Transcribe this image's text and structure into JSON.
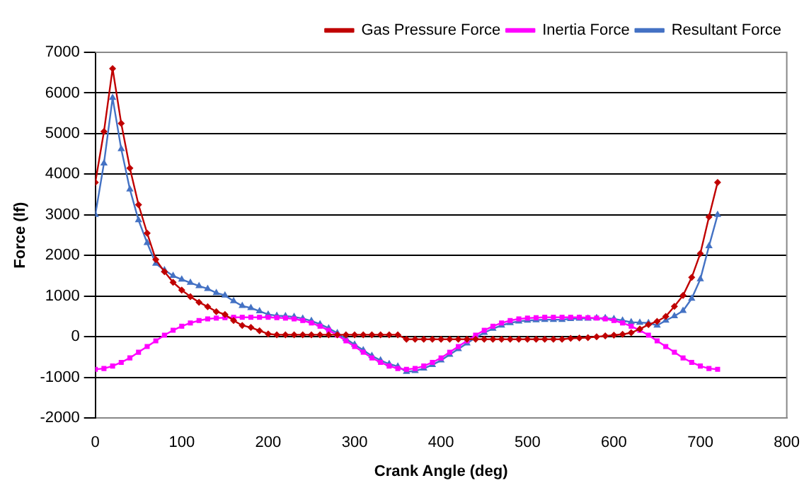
{
  "chart_data": {
    "type": "line",
    "xlabel": "Crank Angle (deg)",
    "ylabel": "Force (lf)",
    "x": [
      0,
      10,
      20,
      30,
      40,
      50,
      60,
      70,
      80,
      90,
      100,
      110,
      120,
      130,
      140,
      150,
      160,
      170,
      180,
      190,
      200,
      210,
      220,
      230,
      240,
      250,
      260,
      270,
      280,
      290,
      300,
      310,
      320,
      330,
      340,
      350,
      360,
      370,
      380,
      390,
      400,
      410,
      420,
      430,
      440,
      450,
      460,
      470,
      480,
      490,
      500,
      510,
      520,
      530,
      540,
      550,
      560,
      570,
      580,
      590,
      600,
      610,
      620,
      630,
      640,
      650,
      660,
      670,
      680,
      690,
      700,
      710,
      720
    ],
    "series": [
      {
        "name": "Gas Pressure Force",
        "color": "#c00000",
        "marker": "diamond",
        "values": [
          3800,
          5050,
          6600,
          5250,
          4150,
          3250,
          2550,
          1900,
          1600,
          1340,
          1150,
          990,
          850,
          740,
          620,
          550,
          400,
          280,
          230,
          150,
          70,
          50,
          50,
          50,
          50,
          50,
          50,
          50,
          50,
          50,
          50,
          50,
          50,
          50,
          50,
          50,
          -60,
          -60,
          -60,
          -60,
          -60,
          -60,
          -60,
          -60,
          -60,
          -60,
          -60,
          -60,
          -60,
          -60,
          -60,
          -60,
          -60,
          -60,
          -60,
          -40,
          -30,
          -20,
          0,
          20,
          40,
          60,
          100,
          190,
          300,
          380,
          500,
          750,
          1020,
          1460,
          2050,
          2950,
          3800
        ]
      },
      {
        "name": "Inertia Force",
        "color": "#ff00ff",
        "marker": "square",
        "values": [
          -800,
          -780,
          -720,
          -630,
          -520,
          -380,
          -240,
          -100,
          40,
          160,
          260,
          340,
          400,
          440,
          460,
          470,
          480,
          480,
          480,
          480,
          480,
          470,
          460,
          440,
          400,
          340,
          260,
          160,
          40,
          -100,
          -240,
          -380,
          -520,
          -630,
          -720,
          -780,
          -800,
          -780,
          -720,
          -630,
          -520,
          -380,
          -240,
          -100,
          40,
          160,
          260,
          340,
          400,
          440,
          460,
          470,
          480,
          480,
          480,
          480,
          480,
          470,
          460,
          440,
          400,
          340,
          260,
          160,
          40,
          -100,
          -240,
          -380,
          -520,
          -630,
          -720,
          -780,
          -800
        ]
      },
      {
        "name": "Resultant Force",
        "color": "#4472c4",
        "marker": "triangle",
        "values": [
          3000,
          4270,
          5880,
          4620,
          3630,
          2870,
          2310,
          1800,
          1640,
          1500,
          1410,
          1330,
          1250,
          1180,
          1080,
          1020,
          880,
          760,
          710,
          630,
          550,
          520,
          510,
          490,
          450,
          390,
          310,
          210,
          90,
          -50,
          -190,
          -330,
          -470,
          -580,
          -670,
          -730,
          -860,
          -840,
          -780,
          -690,
          -580,
          -440,
          -300,
          -160,
          -20,
          100,
          200,
          280,
          340,
          380,
          400,
          410,
          420,
          420,
          420,
          440,
          450,
          450,
          460,
          460,
          440,
          400,
          360,
          350,
          340,
          280,
          400,
          510,
          640,
          940,
          1420,
          2230,
          3000
        ]
      }
    ],
    "xlim": [
      0,
      800
    ],
    "xticks": [
      0,
      100,
      200,
      300,
      400,
      500,
      600,
      700,
      800
    ],
    "ylim": [
      -2000,
      7000
    ],
    "yticks": [
      -2000,
      -1000,
      0,
      1000,
      2000,
      3000,
      4000,
      5000,
      6000,
      7000
    ],
    "grid": "y",
    "legend": "top right",
    "line_style": "solid"
  }
}
